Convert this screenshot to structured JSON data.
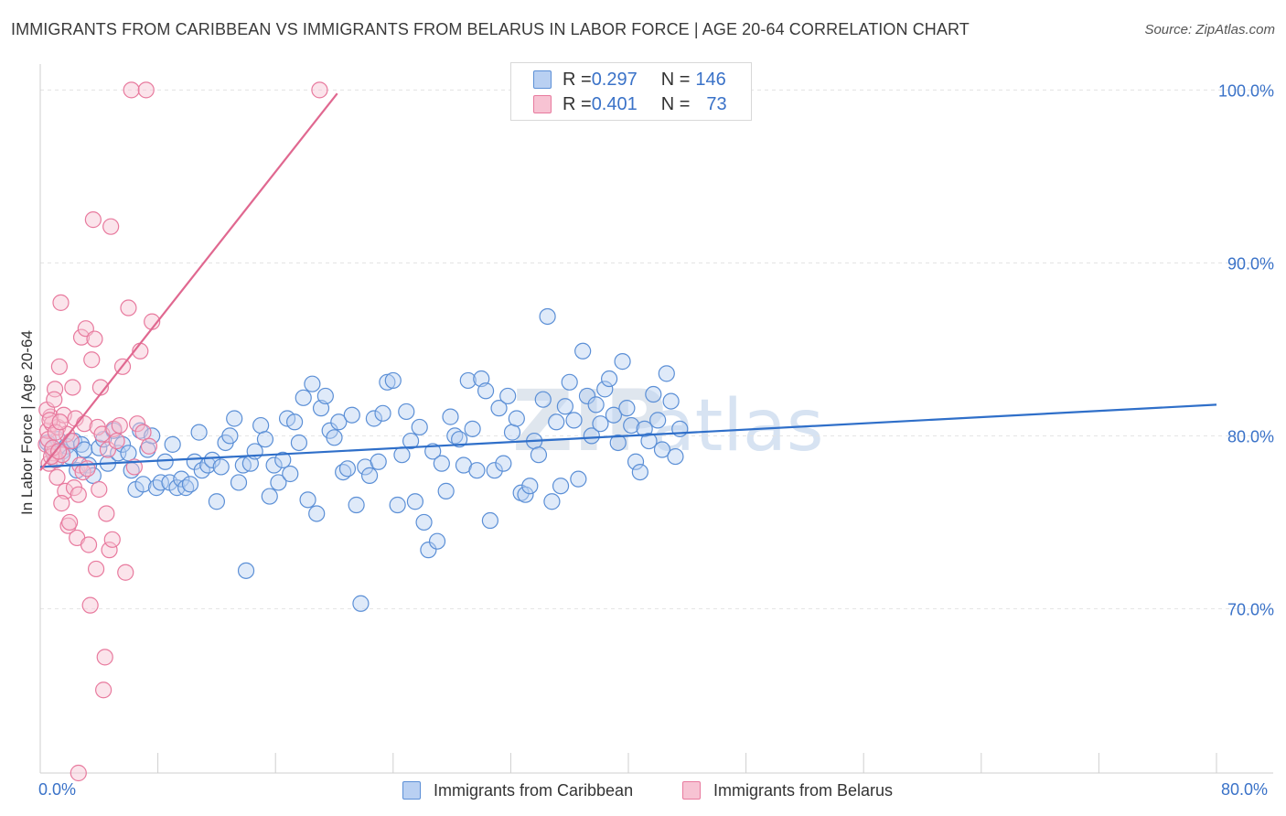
{
  "header": {
    "title": "IMMIGRANTS FROM CARIBBEAN VS IMMIGRANTS FROM BELARUS IN LABOR FORCE | AGE 20-64 CORRELATION CHART",
    "source": "Source: ZipAtlas.com"
  },
  "legend": {
    "r_label": "R = ",
    "n_label": "N = ",
    "rows": [
      {
        "r": "0.297",
        "n": "146"
      },
      {
        "r": "0.401",
        "n": "73"
      }
    ]
  },
  "watermark": {
    "zip": "ZIP",
    "atlas": "atlas"
  },
  "colors": {
    "caribbean_fill": "#b9d0f2",
    "caribbean_stroke": "#5b8fd6",
    "caribbean_line": "#2f6fc9",
    "belarus_fill": "#f7c3d3",
    "belarus_stroke": "#e87a9e",
    "belarus_line": "#e06890",
    "tick_label": "#3a72c8",
    "grid": "#e3e3e3"
  },
  "chart_data": {
    "type": "scatter",
    "title": "IMMIGRANTS FROM CARIBBEAN VS IMMIGRANTS FROM BELARUS IN LABOR FORCE | AGE 20-64 CORRELATION CHART",
    "xlabel": "",
    "ylabel": "In Labor Force | Age 20-64",
    "xlim": [
      0,
      80
    ],
    "ylim": [
      60.5,
      101.5
    ],
    "x_tick_labels": [
      "0.0%",
      "80.0%"
    ],
    "y_ticks": [
      70,
      80,
      90,
      100
    ],
    "y_tick_labels": [
      "70.0%",
      "80.0%",
      "90.0%",
      "100.0%"
    ],
    "grid": true,
    "legend_position": "top-center",
    "series": [
      {
        "name": "Immigrants from Caribbean",
        "R": 0.297,
        "N": 146,
        "trend": {
          "x0": 0,
          "y0": 78.2,
          "x1": 80,
          "y1": 81.8
        },
        "points": [
          [
            0.5,
            79.6
          ],
          [
            0.8,
            79.2
          ],
          [
            1.0,
            78.6
          ],
          [
            1.2,
            79.8
          ],
          [
            1.5,
            79.1
          ],
          [
            1.8,
            79.4
          ],
          [
            2.0,
            78.8
          ],
          [
            2.3,
            79.7
          ],
          [
            2.5,
            78.0
          ],
          [
            2.8,
            79.5
          ],
          [
            3.0,
            79.2
          ],
          [
            3.3,
            78.3
          ],
          [
            3.6,
            77.7
          ],
          [
            4.0,
            79.3
          ],
          [
            4.3,
            79.8
          ],
          [
            4.6,
            78.4
          ],
          [
            5.0,
            80.3
          ],
          [
            5.3,
            79.0
          ],
          [
            5.6,
            79.5
          ],
          [
            6.0,
            79.0
          ],
          [
            6.2,
            78.0
          ],
          [
            6.5,
            76.9
          ],
          [
            6.8,
            80.3
          ],
          [
            7.0,
            77.2
          ],
          [
            7.3,
            79.2
          ],
          [
            7.6,
            80.0
          ],
          [
            7.9,
            77.0
          ],
          [
            8.2,
            77.3
          ],
          [
            8.5,
            78.5
          ],
          [
            8.8,
            77.3
          ],
          [
            9.0,
            79.5
          ],
          [
            9.3,
            77.0
          ],
          [
            9.6,
            77.5
          ],
          [
            9.9,
            77.0
          ],
          [
            10.2,
            77.2
          ],
          [
            10.5,
            78.5
          ],
          [
            10.8,
            80.2
          ],
          [
            11.0,
            78.0
          ],
          [
            11.4,
            78.3
          ],
          [
            11.7,
            78.6
          ],
          [
            12.0,
            76.2
          ],
          [
            12.3,
            78.2
          ],
          [
            12.6,
            79.6
          ],
          [
            12.9,
            80.0
          ],
          [
            13.2,
            81.0
          ],
          [
            13.5,
            77.3
          ],
          [
            13.8,
            78.3
          ],
          [
            14.0,
            72.2
          ],
          [
            14.3,
            78.4
          ],
          [
            14.6,
            79.1
          ],
          [
            15.0,
            80.6
          ],
          [
            15.3,
            79.8
          ],
          [
            15.6,
            76.5
          ],
          [
            15.9,
            78.3
          ],
          [
            16.2,
            77.3
          ],
          [
            16.5,
            78.6
          ],
          [
            16.8,
            81.0
          ],
          [
            17.0,
            77.8
          ],
          [
            17.3,
            80.8
          ],
          [
            17.6,
            79.6
          ],
          [
            17.9,
            82.2
          ],
          [
            18.2,
            76.3
          ],
          [
            18.5,
            83.0
          ],
          [
            18.8,
            75.5
          ],
          [
            19.1,
            81.6
          ],
          [
            19.4,
            82.3
          ],
          [
            19.7,
            80.3
          ],
          [
            20.0,
            79.9
          ],
          [
            20.3,
            80.8
          ],
          [
            20.6,
            77.9
          ],
          [
            20.9,
            78.1
          ],
          [
            21.2,
            81.2
          ],
          [
            21.5,
            76.0
          ],
          [
            21.8,
            70.3
          ],
          [
            22.1,
            78.2
          ],
          [
            22.4,
            77.7
          ],
          [
            22.7,
            81.0
          ],
          [
            23.0,
            78.5
          ],
          [
            23.3,
            81.3
          ],
          [
            23.6,
            83.1
          ],
          [
            24.0,
            83.2
          ],
          [
            24.3,
            76.0
          ],
          [
            24.6,
            78.9
          ],
          [
            24.9,
            81.4
          ],
          [
            25.2,
            79.7
          ],
          [
            25.5,
            76.2
          ],
          [
            25.8,
            80.5
          ],
          [
            26.1,
            75.0
          ],
          [
            26.4,
            73.4
          ],
          [
            26.7,
            79.1
          ],
          [
            27.0,
            73.9
          ],
          [
            27.3,
            78.4
          ],
          [
            27.6,
            76.8
          ],
          [
            27.9,
            81.1
          ],
          [
            28.2,
            80.0
          ],
          [
            28.5,
            79.8
          ],
          [
            28.8,
            78.3
          ],
          [
            29.1,
            83.2
          ],
          [
            29.4,
            80.4
          ],
          [
            29.7,
            78.0
          ],
          [
            30.0,
            83.3
          ],
          [
            30.3,
            82.6
          ],
          [
            30.6,
            75.1
          ],
          [
            30.9,
            78.0
          ],
          [
            31.2,
            81.6
          ],
          [
            31.5,
            78.4
          ],
          [
            31.8,
            82.3
          ],
          [
            32.1,
            80.2
          ],
          [
            32.4,
            81.0
          ],
          [
            32.7,
            76.7
          ],
          [
            33.0,
            76.6
          ],
          [
            33.3,
            77.1
          ],
          [
            33.6,
            79.7
          ],
          [
            33.9,
            78.9
          ],
          [
            34.2,
            82.1
          ],
          [
            34.5,
            86.9
          ],
          [
            34.8,
            76.2
          ],
          [
            35.1,
            80.8
          ],
          [
            35.4,
            77.1
          ],
          [
            35.7,
            81.7
          ],
          [
            36.0,
            83.1
          ],
          [
            36.3,
            80.9
          ],
          [
            36.6,
            77.5
          ],
          [
            36.9,
            84.9
          ],
          [
            37.2,
            82.3
          ],
          [
            37.5,
            80.0
          ],
          [
            37.8,
            81.8
          ],
          [
            38.1,
            80.7
          ],
          [
            38.4,
            82.7
          ],
          [
            38.7,
            83.3
          ],
          [
            39.0,
            81.2
          ],
          [
            39.3,
            79.6
          ],
          [
            39.6,
            84.3
          ],
          [
            39.9,
            81.6
          ],
          [
            40.2,
            80.6
          ],
          [
            40.5,
            78.5
          ],
          [
            40.8,
            77.9
          ],
          [
            41.1,
            80.4
          ],
          [
            41.4,
            79.7
          ],
          [
            41.7,
            82.4
          ],
          [
            42.0,
            80.9
          ],
          [
            42.3,
            79.2
          ],
          [
            42.6,
            83.6
          ],
          [
            42.9,
            82.0
          ],
          [
            43.2,
            78.8
          ],
          [
            43.5,
            80.4
          ]
        ]
      },
      {
        "name": "Immigrants from Belarus",
        "R": 0.401,
        "N": 73,
        "trend": {
          "x0": 0,
          "y0": 78.0,
          "x1": 20.2,
          "y1": 99.8
        },
        "points": [
          [
            0.4,
            79.5
          ],
          [
            0.5,
            80.3
          ],
          [
            0.6,
            78.4
          ],
          [
            0.7,
            81.1
          ],
          [
            0.8,
            80.7
          ],
          [
            0.9,
            79.0
          ],
          [
            1.0,
            82.7
          ],
          [
            1.1,
            78.6
          ],
          [
            1.2,
            80.5
          ],
          [
            1.3,
            84.0
          ],
          [
            1.4,
            87.7
          ],
          [
            1.5,
            78.9
          ],
          [
            1.6,
            81.2
          ],
          [
            1.7,
            76.8
          ],
          [
            1.8,
            80.1
          ],
          [
            1.9,
            74.8
          ],
          [
            2.0,
            75.0
          ],
          [
            2.1,
            79.7
          ],
          [
            2.2,
            82.8
          ],
          [
            2.3,
            77.0
          ],
          [
            2.4,
            81.0
          ],
          [
            2.5,
            74.1
          ],
          [
            2.6,
            76.6
          ],
          [
            2.7,
            78.3
          ],
          [
            2.8,
            85.7
          ],
          [
            2.9,
            77.9
          ],
          [
            3.0,
            80.7
          ],
          [
            3.1,
            86.2
          ],
          [
            3.2,
            78.1
          ],
          [
            3.3,
            73.7
          ],
          [
            3.4,
            70.2
          ],
          [
            3.5,
            84.4
          ],
          [
            3.6,
            92.5
          ],
          [
            3.7,
            85.6
          ],
          [
            3.8,
            72.3
          ],
          [
            3.9,
            80.5
          ],
          [
            4.0,
            76.9
          ],
          [
            4.1,
            82.8
          ],
          [
            4.2,
            80.1
          ],
          [
            4.3,
            65.3
          ],
          [
            4.4,
            67.2
          ],
          [
            4.5,
            75.5
          ],
          [
            4.6,
            79.2
          ],
          [
            4.7,
            73.4
          ],
          [
            4.8,
            92.1
          ],
          [
            4.9,
            74.0
          ],
          [
            5.0,
            80.4
          ],
          [
            5.2,
            79.7
          ],
          [
            5.4,
            80.6
          ],
          [
            5.6,
            84.0
          ],
          [
            5.8,
            72.1
          ],
          [
            6.0,
            87.4
          ],
          [
            6.2,
            100.0
          ],
          [
            6.4,
            78.2
          ],
          [
            6.6,
            80.7
          ],
          [
            6.8,
            84.9
          ],
          [
            7.0,
            80.2
          ],
          [
            7.2,
            100.0
          ],
          [
            7.4,
            79.4
          ],
          [
            7.6,
            86.6
          ],
          [
            0.45,
            81.5
          ],
          [
            0.55,
            79.8
          ],
          [
            0.65,
            80.9
          ],
          [
            0.75,
            78.8
          ],
          [
            0.85,
            79.3
          ],
          [
            0.95,
            82.1
          ],
          [
            1.05,
            80.2
          ],
          [
            1.15,
            77.6
          ],
          [
            1.25,
            79.1
          ],
          [
            1.35,
            80.8
          ],
          [
            1.45,
            76.1
          ],
          [
            2.6,
            60.5
          ],
          [
            19.0,
            100.0
          ]
        ]
      }
    ]
  }
}
